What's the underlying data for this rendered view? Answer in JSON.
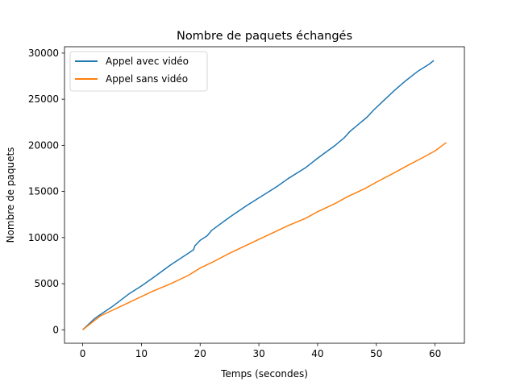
{
  "chart_data": {
    "type": "line",
    "title": "Nombre de paquets échangés",
    "xlabel": "Temps (secondes)",
    "ylabel": "Nombre de paquets",
    "xlim": [
      -3.1,
      65.0
    ],
    "ylim": [
      -1460,
      30690
    ],
    "xticks": [
      0,
      10,
      20,
      30,
      40,
      50,
      60
    ],
    "yticks": [
      0,
      5000,
      10000,
      15000,
      20000,
      25000,
      30000
    ],
    "grid": false,
    "legend_position": "top-left",
    "series": [
      {
        "name": "Appel avec vidéo",
        "color": "#1f77b4",
        "x": [
          0,
          1,
          2,
          3,
          5,
          8,
          10,
          12,
          15,
          18,
          18.9,
          19.1,
          20,
          21.2,
          21.6,
          22,
          25,
          28,
          30,
          33,
          35,
          38,
          40,
          43,
          44.5,
          45.5,
          47,
          48.5,
          49.5,
          51,
          53,
          55,
          57,
          59,
          59.8
        ],
        "y": [
          0,
          600,
          1200,
          1650,
          2500,
          3950,
          4750,
          5650,
          7050,
          8300,
          8700,
          9100,
          9700,
          10200,
          10500,
          10800,
          12200,
          13500,
          14300,
          15500,
          16400,
          17600,
          18600,
          20000,
          20800,
          21500,
          22300,
          23100,
          23800,
          24700,
          25900,
          27000,
          28000,
          28800,
          29200
        ]
      },
      {
        "name": "Appel sans vidéo",
        "color": "#ff7f0e",
        "x": [
          0,
          1,
          2,
          3,
          5,
          8,
          10,
          12,
          15,
          18,
          19,
          20,
          22,
          25,
          28,
          30,
          33,
          35,
          38,
          40,
          43,
          45,
          48,
          50,
          53,
          55,
          58,
          60,
          61.9
        ],
        "y": [
          0,
          500,
          1000,
          1500,
          2100,
          3000,
          3600,
          4200,
          5000,
          5900,
          6300,
          6700,
          7300,
          8300,
          9200,
          9800,
          10700,
          11300,
          12100,
          12800,
          13700,
          14400,
          15300,
          16000,
          17000,
          17700,
          18700,
          19400,
          20300
        ]
      }
    ]
  }
}
